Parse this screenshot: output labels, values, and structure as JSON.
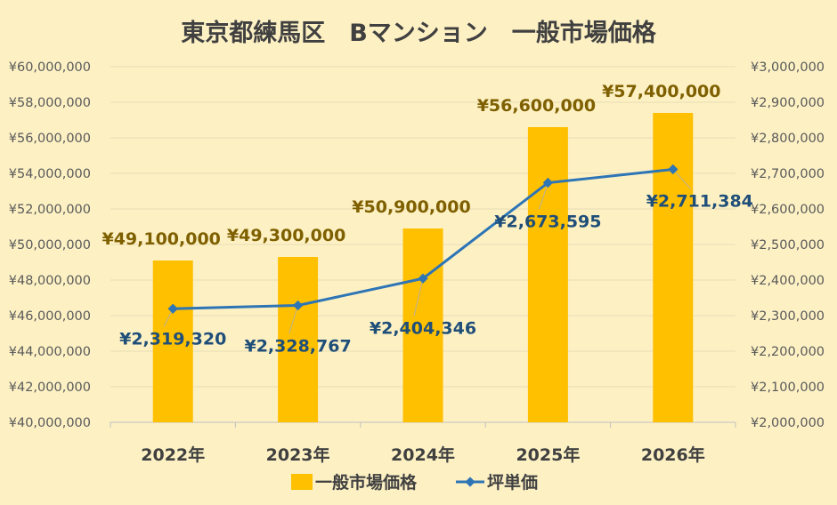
{
  "chart_data": {
    "type": "bar",
    "title": "東京都練馬区　Bマンション　一般市場価格",
    "categories": [
      "2022年",
      "2023年",
      "2024年",
      "2025年",
      "2026年"
    ],
    "series": [
      {
        "name": "一般市場価格",
        "type": "bar",
        "axis": "left",
        "color": "#ffc000",
        "values": [
          49100000,
          49300000,
          50900000,
          56600000,
          57400000
        ],
        "labels": [
          "¥49,100,000",
          "¥49,300,000",
          "¥50,900,000",
          "¥56,600,000",
          "¥57,400,000"
        ]
      },
      {
        "name": "坪単価",
        "type": "line",
        "axis": "right",
        "color": "#2e75b6",
        "values": [
          2319320,
          2328767,
          2404346,
          2673595,
          2711384
        ],
        "labels": [
          "¥2,319,320",
          "¥2,328,767",
          "¥2,404,346",
          "¥2,673,595",
          "¥2,711,384"
        ]
      }
    ],
    "y_left": {
      "min": 40000000,
      "max": 60000000,
      "tick_labels": [
        "¥40,000,000",
        "¥42,000,000",
        "¥44,000,000",
        "¥46,000,000",
        "¥48,000,000",
        "¥50,000,000",
        "¥52,000,000",
        "¥54,000,000",
        "¥56,000,000",
        "¥58,000,000",
        "¥60,000,000"
      ]
    },
    "y_right": {
      "min": 2000000,
      "max": 3000000,
      "tick_labels": [
        "¥2,000,000",
        "¥2,100,000",
        "¥2,200,000",
        "¥2,300,000",
        "¥2,400,000",
        "¥2,500,000",
        "¥2,600,000",
        "¥2,700,000",
        "¥2,800,000",
        "¥2,900,000",
        "¥3,000,000"
      ]
    },
    "grid": true,
    "legend": "bottom"
  }
}
